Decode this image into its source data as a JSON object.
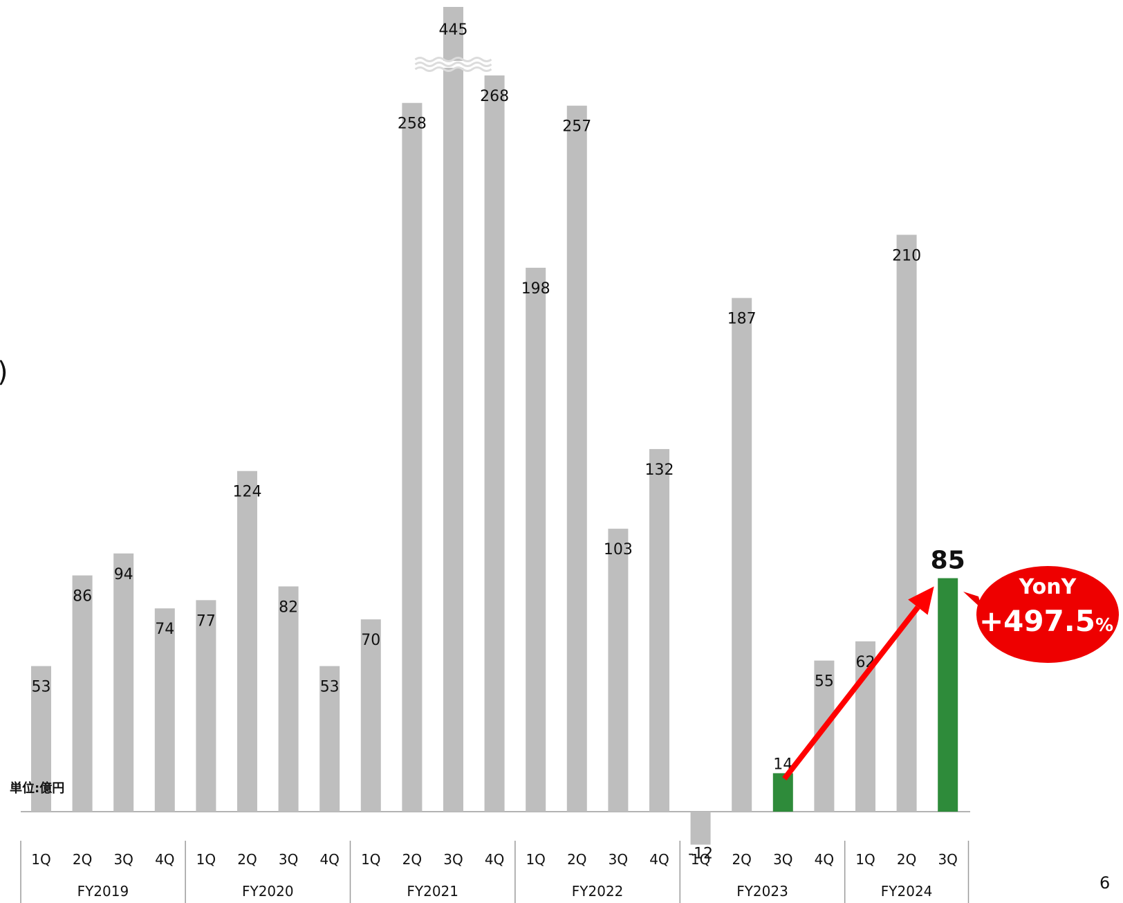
{
  "page_number": "6",
  "left_fragment": ")",
  "unit_label": "単位:億円",
  "callout": {
    "line1": "YonY",
    "line2": "+497.5",
    "suffix": "%"
  },
  "colors": {
    "bar": "#bebebe",
    "highlight": "#2e8b3a",
    "arrow": "#ff0000",
    "callout_fill": "#ee0000",
    "callout_text": "#ffffff",
    "axis": "#9a9a9a"
  },
  "chart_data": {
    "type": "bar",
    "title": "",
    "xlabel": "",
    "ylabel": "",
    "ylim": [
      -12,
      445
    ],
    "axis_break": {
      "category": "FY2021 3Q",
      "note": "bar truncated with wavy break"
    },
    "groups": [
      {
        "label": "FY2019",
        "quarters": [
          "1Q",
          "2Q",
          "3Q",
          "4Q"
        ]
      },
      {
        "label": "FY2020",
        "quarters": [
          "1Q",
          "2Q",
          "3Q",
          "4Q"
        ]
      },
      {
        "label": "FY2021",
        "quarters": [
          "1Q",
          "2Q",
          "3Q",
          "4Q"
        ]
      },
      {
        "label": "FY2022",
        "quarters": [
          "1Q",
          "2Q",
          "3Q",
          "4Q"
        ]
      },
      {
        "label": "FY2023",
        "quarters": [
          "1Q",
          "2Q",
          "3Q",
          "4Q"
        ]
      },
      {
        "label": "FY2024",
        "quarters": [
          "1Q",
          "2Q",
          "3Q"
        ]
      }
    ],
    "values": [
      53,
      86,
      94,
      74,
      77,
      124,
      82,
      53,
      70,
      258,
      445,
      268,
      198,
      257,
      103,
      132,
      -12,
      187,
      14,
      55,
      62,
      210,
      85
    ],
    "highlighted": [
      "FY2023 3Q",
      "FY2024 3Q"
    ],
    "value_labels": [
      "53",
      "86",
      "94",
      "74",
      "77",
      "124",
      "82",
      "53",
      "70",
      "258",
      "445",
      "268",
      "198",
      "257",
      "103",
      "132",
      "-12",
      "187",
      "14",
      "55",
      "62",
      "210",
      "85"
    ]
  }
}
